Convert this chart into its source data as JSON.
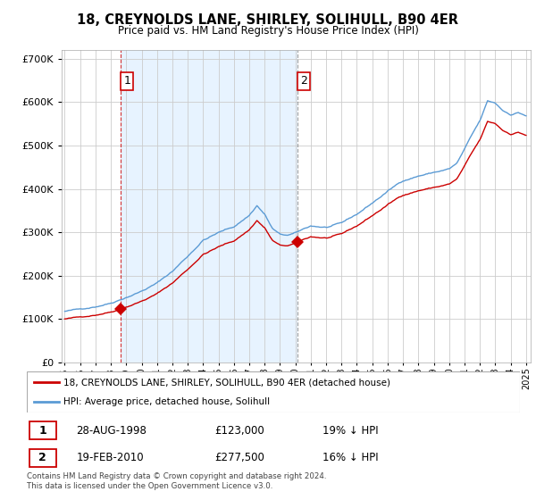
{
  "title": "18, CREYNOLDS LANE, SHIRLEY, SOLIHULL, B90 4ER",
  "subtitle": "Price paid vs. HM Land Registry's House Price Index (HPI)",
  "legend_line1": "18, CREYNOLDS LANE, SHIRLEY, SOLIHULL, B90 4ER (detached house)",
  "legend_line2": "HPI: Average price, detached house, Solihull",
  "sale1_label": "1",
  "sale1_date": "28-AUG-1998",
  "sale1_price": "£123,000",
  "sale1_hpi": "19% ↓ HPI",
  "sale2_label": "2",
  "sale2_date": "19-FEB-2010",
  "sale2_price": "£277,500",
  "sale2_hpi": "16% ↓ HPI",
  "footnote": "Contains HM Land Registry data © Crown copyright and database right 2024.\nThis data is licensed under the Open Government Licence v3.0.",
  "hpi_color": "#5b9bd5",
  "price_color": "#cc0000",
  "shade_color": "#ddeeff",
  "sale_marker_color": "#cc0000",
  "grid_color": "#cccccc",
  "background_color": "#ffffff",
  "sale1_x": 1998.65,
  "sale1_y": 123000,
  "sale2_x": 2010.13,
  "sale2_y": 277500,
  "ylim": [
    0,
    720000
  ],
  "xlim": [
    1994.8,
    2025.3
  ]
}
